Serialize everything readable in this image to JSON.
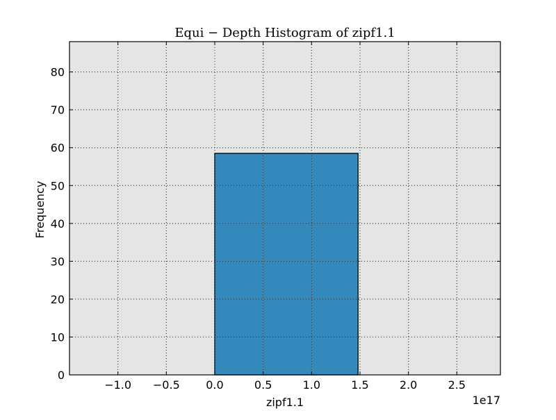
{
  "chart_data": {
    "type": "bar",
    "title": "Equi − Depth Histogram of zipf1.1",
    "xlabel": "zipf1.1",
    "ylabel": "Frequency",
    "x_offset_label": "1e17",
    "xlim": [
      -1.5,
      2.95
    ],
    "ylim": [
      0,
      88
    ],
    "x_ticks": [
      -1.0,
      -0.5,
      0.0,
      0.5,
      1.0,
      1.5,
      2.0,
      2.5
    ],
    "x_tick_labels": [
      "−1.0",
      "−0.5",
      "0.0",
      "0.5",
      "1.0",
      "1.5",
      "2.0",
      "2.5"
    ],
    "y_ticks": [
      0,
      10,
      20,
      30,
      40,
      50,
      60,
      70,
      80
    ],
    "y_tick_labels": [
      "0",
      "10",
      "20",
      "30",
      "40",
      "50",
      "60",
      "70",
      "80"
    ],
    "bins": [
      {
        "x_start": 0.0,
        "x_end": 1.48,
        "value": 58.5
      }
    ],
    "grid": true,
    "colors": {
      "plot_background": "#e5e5e5",
      "bar_fill": "#348abd",
      "bar_edge": "#000000",
      "grid": "#333333"
    }
  }
}
